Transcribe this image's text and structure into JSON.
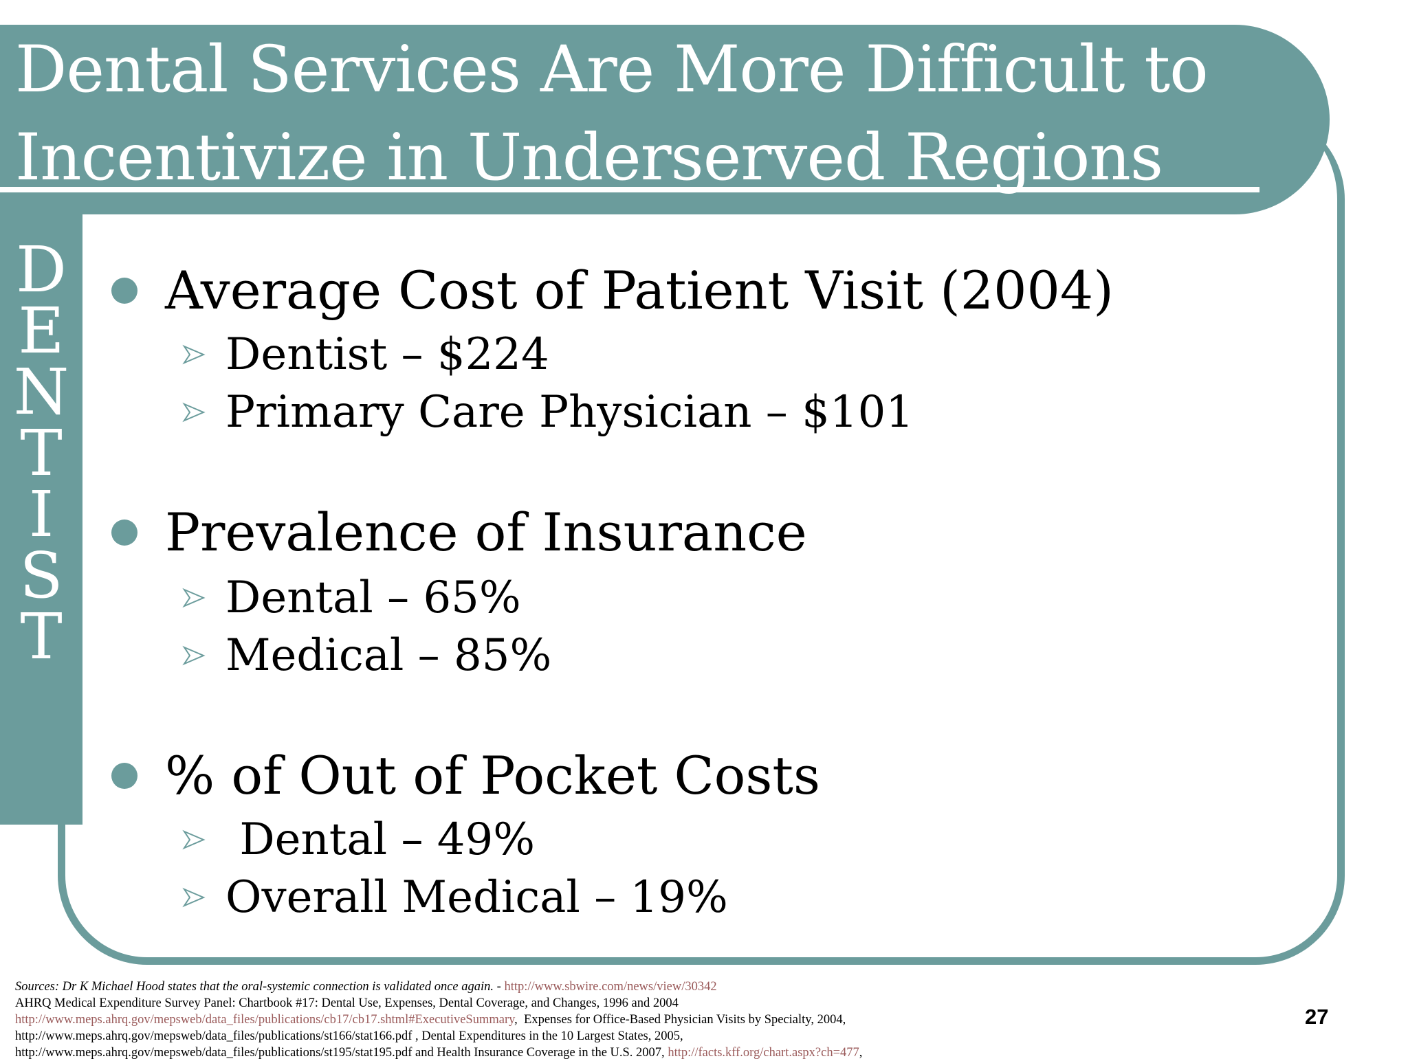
{
  "slide": {
    "title_line1": "Dental Services Are More Difficult to",
    "title_line2": "Incentivize in Underserved Regions",
    "side_letters": [
      "D",
      "E",
      "N",
      "T",
      "I",
      "S",
      "T"
    ],
    "accent_color": "#6b9c9c",
    "bullets": [
      {
        "text": "Average Cost of Patient Visit (2004)",
        "subs": [
          "Dentist – $224",
          "Primary Care Physician – $101"
        ]
      },
      {
        "text": "Prevalence of Insurance",
        "subs": [
          "Dental – 65%",
          "Medical – 85%"
        ]
      },
      {
        "text": "% of Out of Pocket Costs",
        "subs": [
          " Dental – 49%",
          "Overall Medical – 19%"
        ]
      }
    ],
    "sources": {
      "line1_italic": "Sources: Dr K Michael Hood states that the oral-systemic connection is validated once again. - ",
      "line1_link": "http://www.sbwire.com/news/view/30342",
      "line2": "AHRQ Medical Expenditure Survey Panel: Chartbook #17: Dental Use, Expenses, Dental Coverage, and Changes, 1996 and 2004",
      "line3_link": "http://www.meps.ahrq.gov/mepsweb/data_files/publications/cb17/cb17.shtml#ExecutiveSummary",
      "line3_text": ",  Expenses for Office-Based Physician Visits by Specialty, 2004,",
      "line4": "http://www.meps.ahrq.gov/mepsweb/data_files/publications/st166/stat166.pdf , Dental Expenditures in the 10 Largest States, 2005,",
      "line5_text": "http://www.meps.ahrq.gov/mepsweb/data_files/publications/st195/stat195.pdf and Health Insurance Coverage in the U.S. 2007, ",
      "line5_link": "http://facts.kff.org/chart.aspx?ch=477",
      "line5_end": ","
    },
    "page_number": "27"
  }
}
